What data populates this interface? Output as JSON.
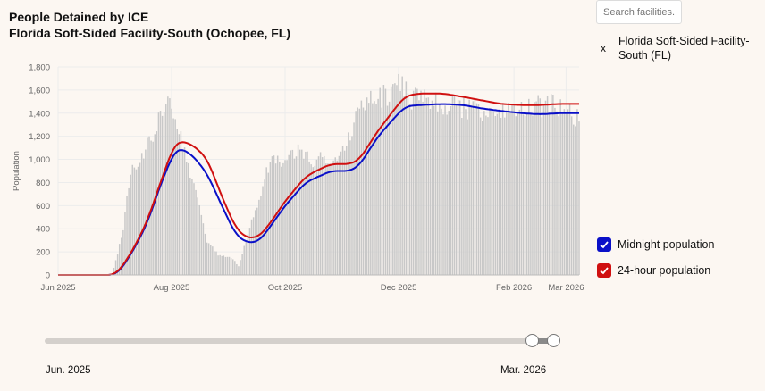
{
  "title": {
    "line1": "People Detained by ICE",
    "line2": "Florida Soft-Sided Facility-South (Ochopee, FL)"
  },
  "search": {
    "placeholder": "Search facilities..."
  },
  "selected_facility": {
    "remove": "x",
    "name": "Florida Soft-Sided Facility-South (FL)"
  },
  "legend": [
    {
      "label": "Midnight population",
      "color": "#0a10c8"
    },
    {
      "label": "24-hour population",
      "color": "#d01010"
    }
  ],
  "range": {
    "start_label": "Jun. 2025",
    "end_label": "Mar. 2026"
  },
  "colors": {
    "bars": "#c8c8c8",
    "grid": "#ececec",
    "axis_text": "#666666"
  },
  "chart_data": {
    "type": "line",
    "ylabel": "Population",
    "ylim": [
      0,
      1800
    ],
    "yticks": [
      0,
      200,
      400,
      600,
      800,
      1000,
      1200,
      1400,
      1600,
      1800
    ],
    "ytick_labels": [
      "0",
      "200",
      "400",
      "600",
      "800",
      "1,000",
      "1,200",
      "1,400",
      "1,600",
      "1,800"
    ],
    "xlim": [
      "2025-06-01",
      "2026-03-08"
    ],
    "xticks": [
      {
        "date": "2025-06-01",
        "label": "Jun 2025"
      },
      {
        "date": "2025-08-01",
        "label": "Aug 2025"
      },
      {
        "date": "2025-10-01",
        "label": "Oct 2025"
      },
      {
        "date": "2025-12-01",
        "label": "Dec 2025"
      },
      {
        "date": "2026-02-01",
        "label": "Feb 2026"
      },
      {
        "date": "2026-03-01",
        "label": "Mar 2026"
      }
    ],
    "grid": true,
    "legend_position": "right",
    "series": [
      {
        "name": "Midnight population",
        "color": "#0a10c8",
        "points": [
          [
            "2025-06-01",
            0
          ],
          [
            "2025-07-01",
            0
          ],
          [
            "2025-07-05",
            50
          ],
          [
            "2025-07-12",
            230
          ],
          [
            "2025-07-19",
            450
          ],
          [
            "2025-07-26",
            780
          ],
          [
            "2025-08-02",
            1050
          ],
          [
            "2025-08-05",
            1100
          ],
          [
            "2025-08-12",
            1040
          ],
          [
            "2025-08-20",
            880
          ],
          [
            "2025-08-28",
            600
          ],
          [
            "2025-09-04",
            360
          ],
          [
            "2025-09-10",
            280
          ],
          [
            "2025-09-17",
            290
          ],
          [
            "2025-09-24",
            440
          ],
          [
            "2025-10-01",
            600
          ],
          [
            "2025-10-12",
            800
          ],
          [
            "2025-10-20",
            860
          ],
          [
            "2025-10-26",
            900
          ],
          [
            "2025-11-05",
            900
          ],
          [
            "2025-11-10",
            950
          ],
          [
            "2025-11-20",
            1200
          ],
          [
            "2025-12-01",
            1400
          ],
          [
            "2025-12-05",
            1460
          ],
          [
            "2025-12-12",
            1470
          ],
          [
            "2025-12-25",
            1480
          ],
          [
            "2026-01-05",
            1470
          ],
          [
            "2026-01-15",
            1440
          ],
          [
            "2026-01-25",
            1420
          ],
          [
            "2026-02-05",
            1400
          ],
          [
            "2026-02-15",
            1390
          ],
          [
            "2026-02-25",
            1400
          ],
          [
            "2026-03-08",
            1400
          ]
        ]
      },
      {
        "name": "24-hour population",
        "color": "#d01010",
        "points": [
          [
            "2025-06-01",
            0
          ],
          [
            "2025-07-01",
            0
          ],
          [
            "2025-07-05",
            60
          ],
          [
            "2025-07-12",
            240
          ],
          [
            "2025-07-19",
            470
          ],
          [
            "2025-07-26",
            800
          ],
          [
            "2025-08-02",
            1110
          ],
          [
            "2025-08-05",
            1160
          ],
          [
            "2025-08-12",
            1130
          ],
          [
            "2025-08-20",
            1010
          ],
          [
            "2025-08-28",
            680
          ],
          [
            "2025-09-04",
            420
          ],
          [
            "2025-09-10",
            320
          ],
          [
            "2025-09-17",
            330
          ],
          [
            "2025-09-24",
            470
          ],
          [
            "2025-10-01",
            640
          ],
          [
            "2025-10-12",
            850
          ],
          [
            "2025-10-20",
            920
          ],
          [
            "2025-10-26",
            960
          ],
          [
            "2025-11-05",
            960
          ],
          [
            "2025-11-10",
            1000
          ],
          [
            "2025-11-20",
            1250
          ],
          [
            "2025-12-01",
            1480
          ],
          [
            "2025-12-05",
            1550
          ],
          [
            "2025-12-12",
            1570
          ],
          [
            "2025-12-25",
            1570
          ],
          [
            "2026-01-05",
            1540
          ],
          [
            "2026-01-15",
            1510
          ],
          [
            "2026-01-25",
            1480
          ],
          [
            "2026-02-05",
            1470
          ],
          [
            "2026-02-15",
            1470
          ],
          [
            "2026-02-25",
            1480
          ],
          [
            "2026-03-08",
            1480
          ]
        ]
      }
    ],
    "bars": {
      "name": "Daily population",
      "color": "#c8c8c8",
      "points": [
        [
          "2025-06-01",
          0
        ],
        [
          "2025-06-30",
          0
        ],
        [
          "2025-07-03",
          180
        ],
        [
          "2025-07-06",
          400
        ],
        [
          "2025-07-10",
          900
        ],
        [
          "2025-07-14",
          980
        ],
        [
          "2025-07-20",
          1150
        ],
        [
          "2025-07-25",
          1350
        ],
        [
          "2025-07-30",
          1470
        ],
        [
          "2025-08-04",
          1350
        ],
        [
          "2025-08-09",
          1000
        ],
        [
          "2025-08-14",
          700
        ],
        [
          "2025-08-20",
          300
        ],
        [
          "2025-08-26",
          180
        ],
        [
          "2025-09-02",
          150
        ],
        [
          "2025-09-06",
          80
        ],
        [
          "2025-09-10",
          300
        ],
        [
          "2025-09-16",
          600
        ],
        [
          "2025-09-22",
          950
        ],
        [
          "2025-10-01",
          1020
        ],
        [
          "2025-10-08",
          1060
        ],
        [
          "2025-10-16",
          1000
        ],
        [
          "2025-10-24",
          1000
        ],
        [
          "2025-11-01",
          1050
        ],
        [
          "2025-11-08",
          1350
        ],
        [
          "2025-11-15",
          1500
        ],
        [
          "2025-11-22",
          1530
        ],
        [
          "2025-12-01",
          1650
        ],
        [
          "2025-12-06",
          1550
        ],
        [
          "2025-12-15",
          1500
        ],
        [
          "2026-01-01",
          1460
        ],
        [
          "2026-01-20",
          1400
        ],
        [
          "2026-02-05",
          1420
        ],
        [
          "2026-02-20",
          1480
        ],
        [
          "2026-03-01",
          1420
        ],
        [
          "2026-03-08",
          1340
        ]
      ]
    }
  }
}
